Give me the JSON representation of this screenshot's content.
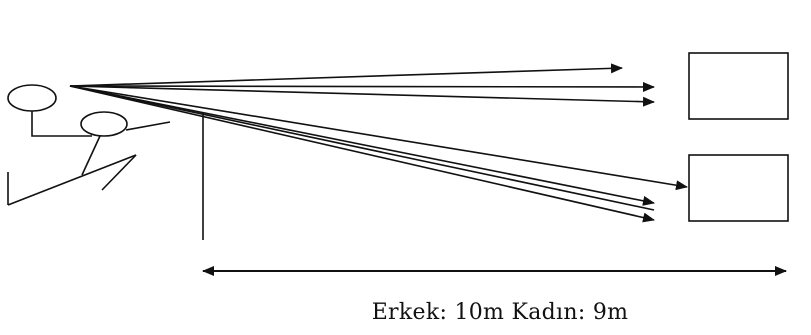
{
  "diagram": {
    "distance_label": "Erkek: 10m Kadın: 9m",
    "shot_arrow_count": 7,
    "target_count": 2,
    "colors": {
      "ink": "#111111",
      "background": "#ffffff"
    },
    "icons": [
      "player-figure-icon",
      "arrowhead-icon"
    ]
  }
}
